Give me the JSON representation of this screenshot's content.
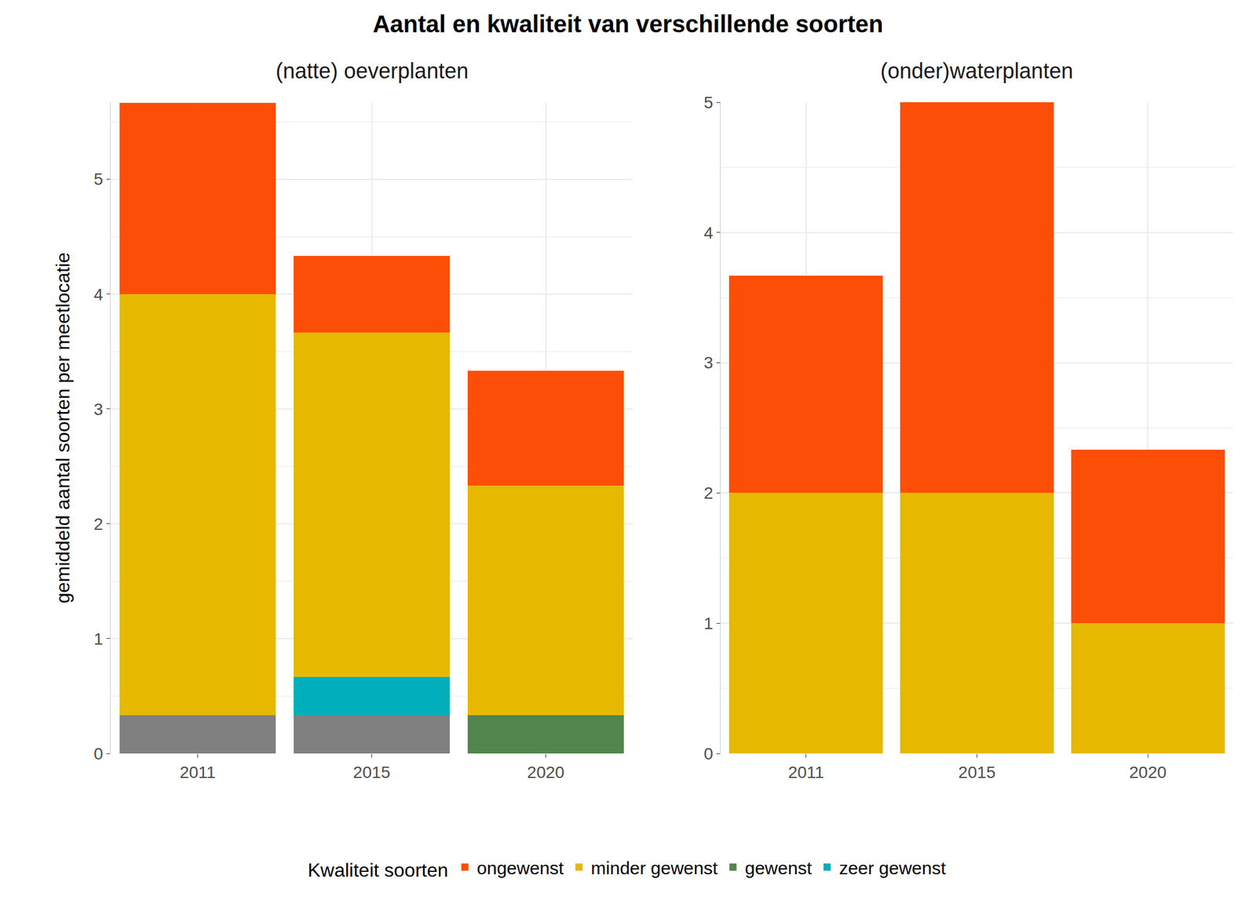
{
  "chart_data": {
    "type": "bar",
    "title": "Aantal en kwaliteit van verschillende soorten",
    "y_label": "gemiddeld aantal soorten per meetlocatie",
    "legend_title": "Kwaliteit soorten",
    "legend": "bottom",
    "stacked": true,
    "grid": true,
    "panels": [
      {
        "subtitle": "(natte) oeverplanten",
        "categories": [
          "2011",
          "2015",
          "2020"
        ],
        "ylim": [
          0,
          5.67
        ],
        "yticks": [
          0,
          1,
          2,
          3,
          4,
          5
        ],
        "series": [
          {
            "name": null,
            "color": "#808080",
            "values": [
              0.333,
              0.333,
              0
            ]
          },
          {
            "name": "zeer gewenst",
            "color": "#00AFBB",
            "values": [
              0,
              0.333,
              0
            ]
          },
          {
            "name": "gewenst",
            "color": "#52854C",
            "values": [
              0,
              0,
              0.333
            ]
          },
          {
            "name": "minder gewenst",
            "color": "#E7B800",
            "values": [
              3.667,
              3.0,
              2.0
            ]
          },
          {
            "name": "ongewenst",
            "color": "#FC4E07",
            "values": [
              1.667,
              0.667,
              1.0
            ]
          }
        ]
      },
      {
        "subtitle": "(onder)waterplanten",
        "categories": [
          "2011",
          "2015",
          "2020"
        ],
        "ylim": [
          0,
          5
        ],
        "yticks": [
          0,
          1,
          2,
          3,
          4,
          5
        ],
        "series": [
          {
            "name": "minder gewenst",
            "color": "#E7B800",
            "values": [
              2.0,
              2.0,
              1.0
            ]
          },
          {
            "name": "ongewenst",
            "color": "#FC4E07",
            "values": [
              1.667,
              3.0,
              1.333
            ]
          }
        ]
      }
    ]
  }
}
